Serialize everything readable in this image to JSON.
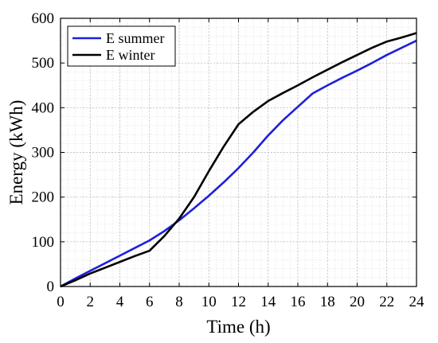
{
  "chart_data": {
    "type": "line",
    "title": "",
    "xlabel": "Time (h)",
    "ylabel": "Energy (kWh)",
    "xlim": [
      0,
      24
    ],
    "ylim": [
      0,
      600
    ],
    "xticks": [
      0,
      2,
      4,
      6,
      8,
      10,
      12,
      14,
      16,
      18,
      20,
      22,
      24
    ],
    "yticks": [
      0,
      100,
      200,
      300,
      400,
      500,
      600
    ],
    "grid": true,
    "minor_grid": true,
    "legend_position": "top-left",
    "series": [
      {
        "name": "E summer",
        "color": "#1f1fdc",
        "x": [
          0,
          1,
          2,
          3,
          4,
          5,
          6,
          7,
          8,
          9,
          10,
          11,
          12,
          13,
          14,
          15,
          16,
          17,
          18,
          19,
          20,
          21,
          22,
          23,
          24
        ],
        "y": [
          0,
          18,
          35,
          52,
          69,
          86,
          103,
          124,
          148,
          175,
          203,
          233,
          265,
          300,
          338,
          372,
          402,
          432,
          450,
          467,
          483,
          500,
          518,
          534,
          550
        ]
      },
      {
        "name": "E winter",
        "color": "#000000",
        "x": [
          0,
          1,
          2,
          3,
          4,
          5,
          6,
          7,
          8,
          9,
          10,
          11,
          12,
          13,
          14,
          15,
          16,
          17,
          18,
          19,
          20,
          21,
          22,
          23,
          24
        ],
        "y": [
          0,
          14,
          29,
          42,
          55,
          68,
          80,
          113,
          152,
          200,
          258,
          313,
          363,
          391,
          415,
          433,
          450,
          468,
          485,
          502,
          518,
          534,
          548,
          557,
          567
        ]
      }
    ]
  }
}
